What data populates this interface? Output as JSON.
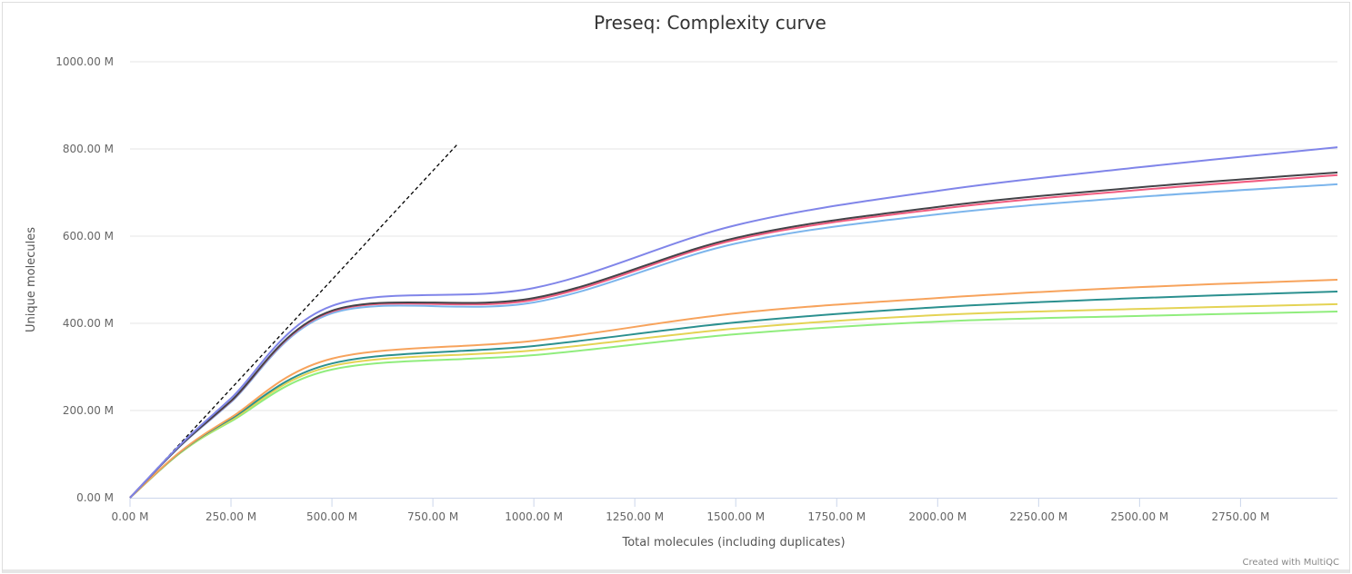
{
  "chart_data": {
    "type": "line",
    "title": "Preseq: Complexity curve",
    "xlabel": "Total molecules (including duplicates)",
    "ylabel": "Unique molecules",
    "xlim": [
      0,
      2990
    ],
    "ylim": [
      0,
      1000
    ],
    "unit_suffix": " M",
    "xticks": [
      "0.00 M",
      "250.00 M",
      "500.00 M",
      "750.00 M",
      "1000.00 M",
      "1250.00 M",
      "1500.00 M",
      "1750.00 M",
      "2000.00 M",
      "2250.00 M",
      "2500.00 M",
      "2750.00 M"
    ],
    "xtick_values": [
      0,
      250,
      500,
      750,
      1000,
      1250,
      1500,
      1750,
      2000,
      2250,
      2500,
      2750
    ],
    "yticks": [
      "0.00 M",
      "200.00 M",
      "400.00 M",
      "600.00 M",
      "800.00 M",
      "1000.00 M"
    ],
    "ytick_values": [
      0,
      200,
      400,
      600,
      800,
      1000
    ],
    "grid": true,
    "x": [
      0,
      125,
      250,
      500,
      1000,
      1500,
      2000,
      2500,
      2990
    ],
    "series": [
      {
        "color": "#8085e9",
        "values": [
          0,
          122,
          228,
          440,
          481,
          625,
          704,
          758,
          804
        ]
      },
      {
        "color": "#434348",
        "values": [
          0,
          120,
          222,
          429,
          458,
          596,
          667,
          712,
          746
        ]
      },
      {
        "color": "#f15c80",
        "values": [
          0,
          120,
          221,
          427,
          454,
          592,
          662,
          706,
          740
        ]
      },
      {
        "color": "#7cb5ec",
        "values": [
          0,
          119,
          219,
          423,
          448,
          583,
          650,
          690,
          719
        ]
      },
      {
        "color": "#f7a35c",
        "values": [
          0,
          106,
          184,
          319,
          360,
          423,
          458,
          483,
          500
        ]
      },
      {
        "color": "#2b908f",
        "values": [
          0,
          105,
          181,
          308,
          348,
          402,
          437,
          458,
          473
        ]
      },
      {
        "color": "#e4d354",
        "values": [
          0,
          104,
          178,
          302,
          338,
          388,
          419,
          433,
          444
        ]
      },
      {
        "color": "#90ed7d",
        "values": [
          0,
          103,
          175,
          294,
          327,
          375,
          404,
          417,
          427
        ]
      }
    ],
    "reference_line": {
      "style": "dashed",
      "color": "#000000",
      "x": [
        0,
        810
      ],
      "y": [
        0,
        810
      ]
    }
  },
  "credit": "Created with MultiQC"
}
